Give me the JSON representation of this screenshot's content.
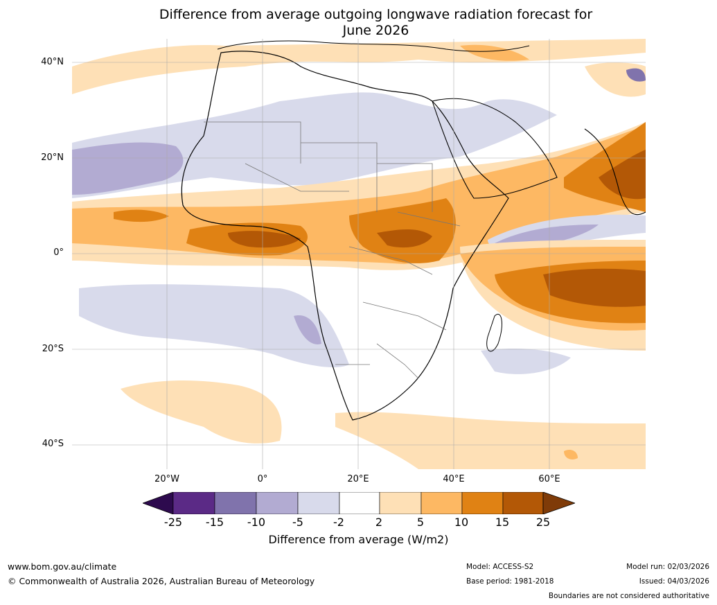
{
  "title_line1": "Difference from average outgoing longwave radiation forecast for",
  "title_line2": "June 2026",
  "axes": {
    "lat_labels": [
      "40°N",
      "20°N",
      "0°",
      "20°S",
      "40°S"
    ],
    "lon_labels": [
      "20°W",
      "0°",
      "20°E",
      "40°E",
      "60°E"
    ]
  },
  "colorbar": {
    "ticks": [
      "-25",
      "-15",
      "-10",
      "-5",
      "-2",
      "2",
      "5",
      "10",
      "15",
      "25"
    ],
    "label": "Difference from average (W/m2)",
    "colors": [
      "#2d0a4e",
      "#5b2a86",
      "#8073ac",
      "#b2abd2",
      "#d8daeb",
      "#ffffff",
      "#fee0b6",
      "#fdb863",
      "#e08214",
      "#b35806",
      "#7f3b08"
    ]
  },
  "footer": {
    "website": "www.bom.gov.au/climate",
    "copyright": "© Commonwealth of Australia 2026, Australian Bureau of Meteorology",
    "model": "Model: ACCESS-S2",
    "base_period": "Base period: 1981-2018",
    "model_run": "Model run: 02/03/2026",
    "issued": "Issued: 04/03/2026",
    "disclaimer": "Boundaries are not considered authoritative"
  }
}
